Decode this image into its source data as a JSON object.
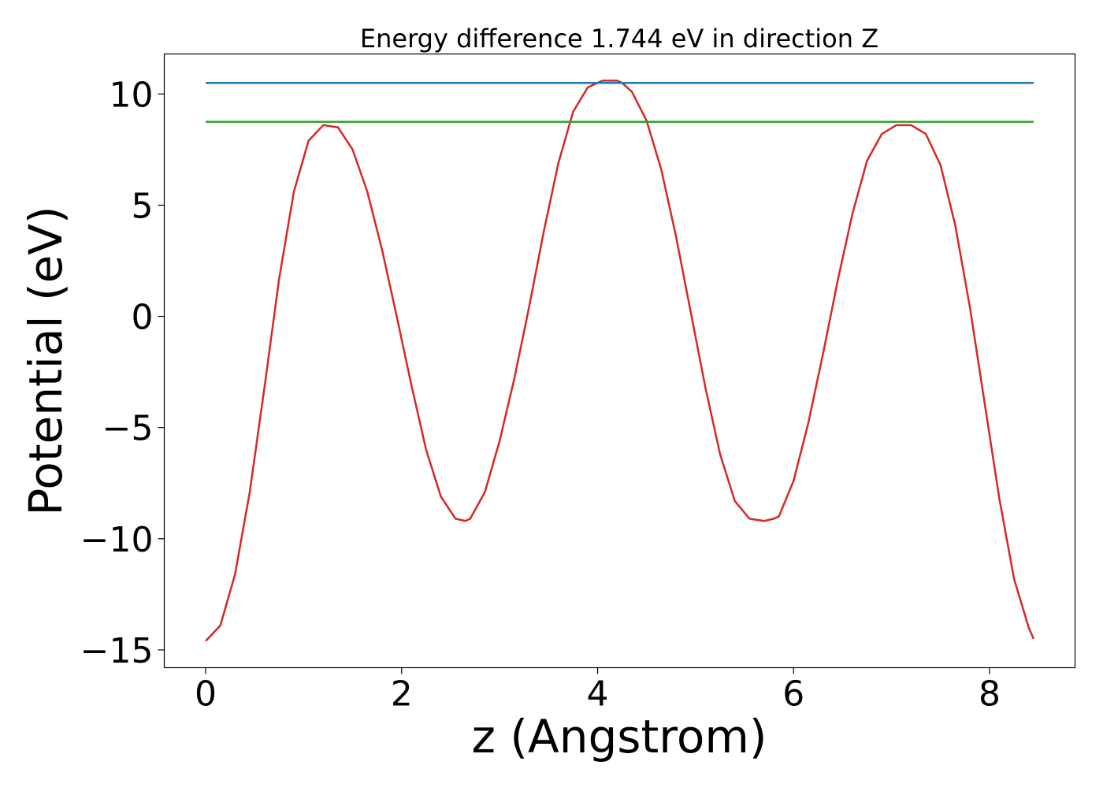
{
  "chart_data": {
    "type": "line",
    "title": "Energy difference 1.744 eV in direction Z",
    "xlabel": "z (Angstrom)",
    "ylabel": "Potential (eV)",
    "xlim": [
      -0.4225,
      8.8725
    ],
    "ylim": [
      -15.8,
      11.8
    ],
    "xticks": [
      0,
      2,
      4,
      6,
      8
    ],
    "xtick_labels": [
      "0",
      "2",
      "4",
      "6",
      "8"
    ],
    "yticks": [
      -15,
      -10,
      -5,
      0,
      5,
      10
    ],
    "ytick_labels": [
      "−15",
      "−10",
      "−5",
      "0",
      "5",
      "10"
    ],
    "grid": false,
    "legend": false,
    "series": [
      {
        "color": "#d62728",
        "x": [
          0.0,
          0.15,
          0.3,
          0.45,
          0.6,
          0.75,
          0.9,
          1.05,
          1.2,
          1.35,
          1.5,
          1.65,
          1.8,
          1.95,
          2.1,
          2.25,
          2.4,
          2.55,
          2.65,
          2.7,
          2.85,
          3.0,
          3.15,
          3.3,
          3.45,
          3.6,
          3.75,
          3.9,
          4.05,
          4.2,
          4.25,
          4.35,
          4.5,
          4.65,
          4.8,
          4.95,
          5.1,
          5.25,
          5.4,
          5.55,
          5.7,
          5.8,
          5.85,
          6.0,
          6.15,
          6.3,
          6.45,
          6.6,
          6.75,
          6.9,
          7.05,
          7.2,
          7.35,
          7.5,
          7.65,
          7.8,
          7.95,
          8.1,
          8.25,
          8.4,
          8.45
        ],
        "values": [
          -14.6,
          -13.9,
          -11.6,
          -7.9,
          -3.2,
          1.7,
          5.6,
          7.9,
          8.6,
          8.5,
          7.5,
          5.6,
          3.0,
          0.0,
          -3.1,
          -6.0,
          -8.1,
          -9.1,
          -9.2,
          -9.1,
          -7.9,
          -5.6,
          -2.8,
          0.4,
          3.8,
          6.9,
          9.2,
          10.3,
          10.6,
          10.6,
          10.5,
          10.1,
          8.8,
          6.6,
          3.6,
          0.2,
          -3.2,
          -6.2,
          -8.3,
          -9.1,
          -9.2,
          -9.1,
          -9.0,
          -7.4,
          -4.8,
          -1.7,
          1.6,
          4.6,
          7.0,
          8.2,
          8.6,
          8.6,
          8.2,
          6.8,
          4.1,
          0.4,
          -3.9,
          -8.2,
          -11.8,
          -14.0,
          -14.5
        ]
      },
      {
        "color": "#1f77b4",
        "x": [
          0.0,
          8.45
        ],
        "values": [
          10.5,
          10.5
        ]
      },
      {
        "color": "#2ca02c",
        "x": [
          0.0,
          8.45
        ],
        "values": [
          8.75,
          8.75
        ]
      }
    ]
  }
}
